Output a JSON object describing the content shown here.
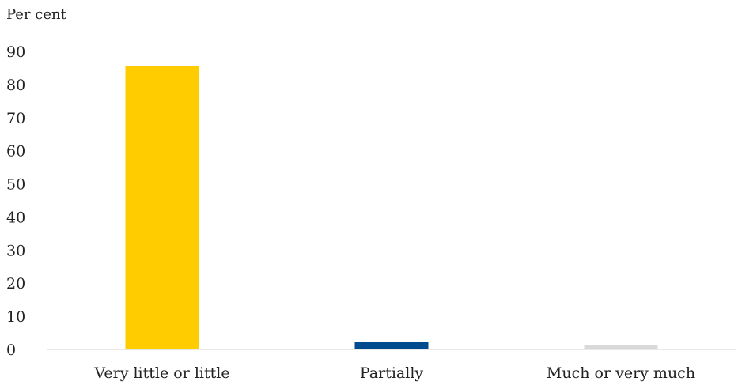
{
  "chart_data": {
    "type": "bar",
    "ylabel": "Per cent",
    "categories": [
      "Very little or little",
      "Partially",
      "Much or very much"
    ],
    "values": [
      85.5,
      2.3,
      1.2
    ],
    "colors": [
      "#ffcc00",
      "#004b8d",
      "#d9d9d9"
    ],
    "ylim": [
      0,
      90
    ],
    "yticks": [
      "0",
      "10",
      "20",
      "30",
      "40",
      "50",
      "60",
      "70",
      "80",
      "90"
    ],
    "grid": false,
    "legend": "none"
  }
}
